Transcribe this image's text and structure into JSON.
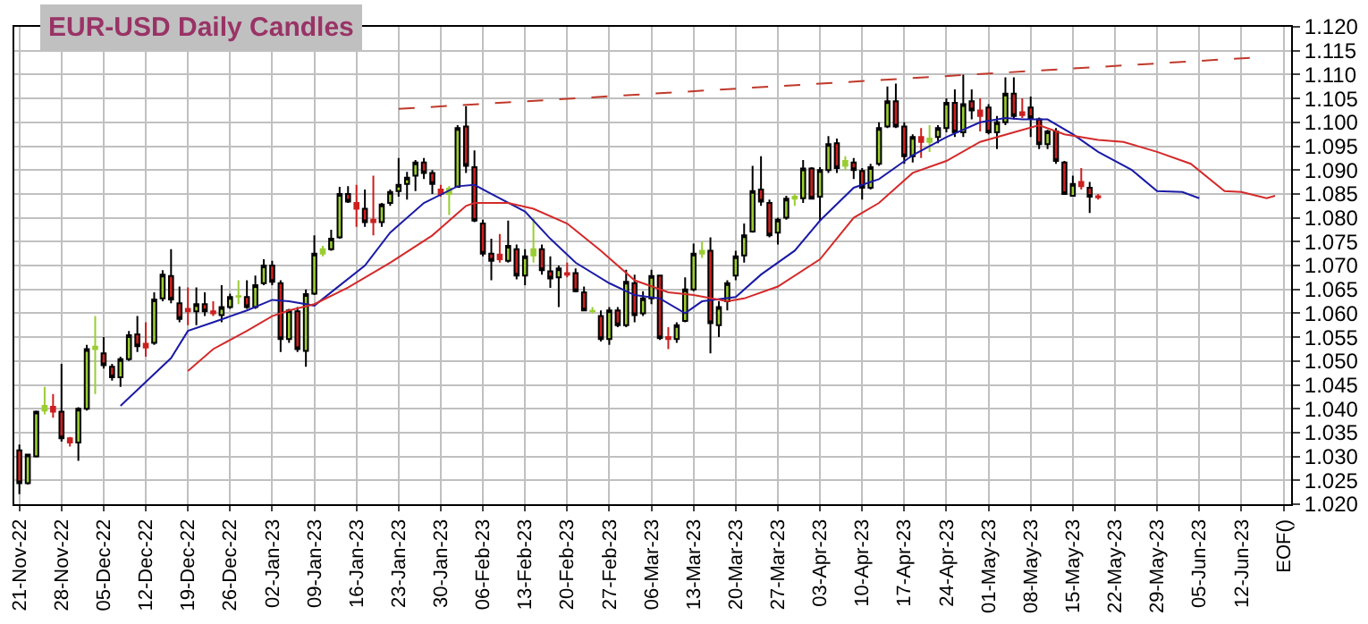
{
  "chart_data": {
    "type": "candlestick",
    "title": "EUR-USD Daily Candles",
    "colors": [
      "#cc1f1f",
      "#9acd32",
      "#9acd32",
      "#9acd32",
      "#cc1f1f",
      "#cc1f1f",
      "#cc1f1f",
      "#9acd32",
      "#9acd32",
      "#9acd32",
      "#cc1f1f",
      "#cc1f1f",
      "#9acd32",
      "#9acd32",
      "#cc1f1f",
      "#cc1f1f",
      "#9acd32",
      "#9acd32",
      "#cc1f1f",
      "#cc1f1f",
      "#cc1f1f",
      "#9acd32",
      "#cc1f1f",
      "#cc1f1f",
      "#9acd32",
      "#9acd32",
      "#9acd32",
      "#cc1f1f",
      "#9acd32",
      "#9acd32",
      "#cc1f1f",
      "#cc1f1f",
      "#9acd32",
      "#cc1f1f",
      "#9acd32",
      "#9acd32",
      "#9acd32",
      "#9acd32",
      "#9acd32",
      "#cc1f1f",
      "#cc1f1f",
      "#cc1f1f",
      "#cc1f1f",
      "#9acd32",
      "#9acd32",
      "#9acd32",
      "#9acd32",
      "#9acd32",
      "#cc1f1f",
      "#cc1f1f",
      "#cc1f1f",
      "#9acd32",
      "#9acd32",
      "#cc1f1f",
      "#cc1f1f",
      "#cc1f1f",
      "#cc1f1f",
      "#cc1f1f",
      "#9acd32",
      "#cc1f1f",
      "#9acd32",
      "#9acd32",
      "#cc1f1f",
      "#cc1f1f",
      "#9acd32",
      "#cc1f1f",
      "#cc1f1f",
      "#cc1f1f",
      "#9acd32",
      "#cc1f1f",
      "#9acd32",
      "#cc1f1f",
      "#9acd32",
      "#cc1f1f",
      "#9acd32",
      "#9acd32",
      "#cc1f1f",
      "#cc1f1f",
      "#9acd32",
      "#9acd32",
      "#9acd32",
      "#9acd32",
      "#cc1f1f",
      "#9acd32",
      "#9acd32",
      "#9acd32",
      "#9acd32",
      "#9acd32",
      "#cc1f1f",
      "#cc1f1f",
      "#9acd32",
      "#9acd32",
      "#9acd32",
      "#9acd32",
      "#cc1f1f",
      "#9acd32",
      "#9acd32",
      "#cc1f1f",
      "#9acd32",
      "#cc1f1f",
      "#cc1f1f",
      "#9acd32",
      "#9acd32",
      "#9acd32",
      "#cc1f1f",
      "#cc1f1f",
      "#9acd32",
      "#cc1f1f",
      "#9acd32",
      "#9acd32",
      "#9acd32",
      "#cc1f1f",
      "#9acd32",
      "#cc1f1f",
      "#cc1f1f",
      "#cc1f1f",
      "#9acd32",
      "#9acd32",
      "#cc1f1f",
      "#cc1f1f",
      "#cc1f1f",
      "#cc1f1f",
      "#9acd32",
      "#cc1f1f",
      "#cc1f1f",
      "#9acd32",
      "#cc1f1f",
      "#cc1f1f",
      "#cc1f1f",
      null,
      null,
      null,
      null,
      null,
      null,
      null,
      null,
      null,
      null,
      null,
      null,
      null,
      null,
      null,
      null,
      null,
      null,
      null,
      null,
      null,
      null
    ],
    "categories": [
      "21-Nov-22",
      null,
      null,
      null,
      null,
      "28-Nov-22",
      null,
      null,
      null,
      null,
      "05-Dec-22",
      null,
      null,
      null,
      null,
      "12-Dec-22",
      null,
      null,
      null,
      null,
      "19-Dec-22",
      null,
      null,
      null,
      null,
      "26-Dec-22",
      null,
      null,
      null,
      null,
      "02-Jan-23",
      null,
      null,
      null,
      null,
      "09-Jan-23",
      null,
      null,
      null,
      null,
      "16-Jan-23",
      null,
      null,
      null,
      null,
      "23-Jan-23",
      null,
      null,
      null,
      null,
      "30-Jan-23",
      null,
      null,
      null,
      null,
      "06-Feb-23",
      null,
      null,
      null,
      null,
      "13-Feb-23",
      null,
      null,
      null,
      null,
      "20-Feb-23",
      null,
      null,
      null,
      null,
      "27-Feb-23",
      null,
      null,
      null,
      null,
      "06-Mar-23",
      null,
      null,
      null,
      null,
      "13-Mar-23",
      null,
      null,
      null,
      null,
      "20-Mar-23",
      null,
      null,
      null,
      null,
      "27-Mar-23",
      null,
      null,
      null,
      null,
      "03-Apr-23",
      null,
      null,
      null,
      null,
      "10-Apr-23",
      null,
      null,
      null,
      null,
      "17-Apr-23",
      null,
      null,
      null,
      null,
      "24-Apr-23",
      null,
      null,
      null,
      null,
      "01-May-23",
      null,
      null,
      null,
      null,
      "08-May-23",
      null,
      null,
      null,
      null,
      "15-May-23",
      null,
      null,
      null,
      null,
      "22-May-23",
      null,
      null,
      null,
      null,
      "29-May-23",
      null,
      null,
      null,
      null,
      "05-Jun-23",
      null,
      null,
      null,
      null,
      "12-Jun-23",
      null,
      null,
      null,
      null,
      "EOF()"
    ],
    "ohlc": [
      [
        1.0313,
        1.0325,
        1.0221,
        1.0244
      ],
      [
        1.0244,
        1.0306,
        1.0241,
        1.0304
      ],
      [
        1.03,
        1.0396,
        1.0298,
        1.0394
      ],
      [
        1.0396,
        1.0446,
        1.0388,
        1.0406
      ],
      [
        1.0404,
        1.0431,
        1.0381,
        1.0394
      ],
      [
        1.0394,
        1.0494,
        1.0331,
        1.0338
      ],
      [
        1.0338,
        1.0341,
        1.0321,
        1.0329
      ],
      [
        1.0329,
        1.0403,
        1.0291,
        1.04
      ],
      [
        1.04,
        1.0534,
        1.0396,
        1.0525
      ],
      [
        1.0525,
        1.0594,
        1.0431,
        1.053
      ],
      [
        1.0516,
        1.055,
        1.0484,
        1.0491
      ],
      [
        1.0488,
        1.0494,
        1.0459,
        1.0466
      ],
      [
        1.0466,
        1.0509,
        1.0446,
        1.0504
      ],
      [
        1.0504,
        1.0563,
        1.05,
        1.0554
      ],
      [
        1.0556,
        1.0594,
        1.0519,
        1.0531
      ],
      [
        1.0536,
        1.0581,
        1.0509,
        1.0528
      ],
      [
        1.0538,
        1.0644,
        1.0534,
        1.0629
      ],
      [
        1.0631,
        1.069,
        1.0625,
        1.0681
      ],
      [
        1.0678,
        1.0734,
        1.0621,
        1.0629
      ],
      [
        1.0621,
        1.0656,
        1.0581,
        1.0588
      ],
      [
        1.0609,
        1.0654,
        1.0575,
        1.0604
      ],
      [
        1.0604,
        1.0654,
        1.0575,
        1.0619
      ],
      [
        1.0619,
        1.0644,
        1.0594,
        1.0604
      ],
      [
        1.0604,
        1.0625,
        1.0594,
        1.06
      ],
      [
        1.0596,
        1.0659,
        1.0581,
        1.0613
      ],
      [
        1.0613,
        1.0641,
        1.0609,
        1.0634
      ],
      [
        1.0635,
        1.0669,
        1.0619,
        1.0636
      ],
      [
        1.0634,
        1.0669,
        1.0609,
        1.0613
      ],
      [
        1.0613,
        1.0679,
        1.0609,
        1.0659
      ],
      [
        1.0663,
        1.0713,
        1.0659,
        1.07
      ],
      [
        1.07,
        1.071,
        1.0659,
        1.0666
      ],
      [
        1.0663,
        1.0669,
        1.0519,
        1.0546
      ],
      [
        1.0546,
        1.0609,
        1.0538,
        1.0606
      ],
      [
        1.0604,
        1.0613,
        1.0519,
        1.0525
      ],
      [
        1.0521,
        1.065,
        1.0488,
        1.064
      ],
      [
        1.0641,
        1.0763,
        1.0638,
        1.0725
      ],
      [
        1.0725,
        1.0741,
        1.0719,
        1.0734
      ],
      [
        1.0734,
        1.0775,
        1.0731,
        1.0756
      ],
      [
        1.0759,
        1.0865,
        1.0756,
        1.085
      ],
      [
        1.085,
        1.0866,
        1.0831,
        1.0834
      ],
      [
        1.0831,
        1.0869,
        1.0781,
        1.0819
      ],
      [
        1.0819,
        1.0859,
        1.0781,
        1.0791
      ],
      [
        1.0796,
        1.0888,
        1.0763,
        1.0791
      ],
      [
        1.0791,
        1.0831,
        1.0781,
        1.0828
      ],
      [
        1.0831,
        1.0859,
        1.0825,
        1.0854
      ],
      [
        1.0856,
        1.0925,
        1.0844,
        1.0869
      ],
      [
        1.0871,
        1.0896,
        1.0838,
        1.0884
      ],
      [
        1.0888,
        1.0921,
        1.0856,
        1.0916
      ],
      [
        1.0916,
        1.0925,
        1.0881,
        1.0894
      ],
      [
        1.0894,
        1.09,
        1.085,
        1.0871
      ],
      [
        1.0859,
        1.0869,
        1.0844,
        1.085
      ],
      [
        1.085,
        1.0866,
        1.0806,
        1.0861
      ],
      [
        1.0865,
        1.0994,
        1.0863,
        1.0988
      ],
      [
        1.0991,
        1.1034,
        1.0894,
        1.0909
      ],
      [
        1.0906,
        1.0941,
        1.0791,
        1.0794
      ],
      [
        1.0788,
        1.0796,
        1.0719,
        1.0725
      ],
      [
        1.0725,
        1.0756,
        1.0669,
        1.071
      ],
      [
        1.0723,
        1.0766,
        1.0706,
        1.0713
      ],
      [
        1.071,
        1.0794,
        1.0706,
        1.0741
      ],
      [
        1.0734,
        1.0744,
        1.0671,
        1.0679
      ],
      [
        1.0679,
        1.0734,
        1.0659,
        1.0719
      ],
      [
        1.0721,
        1.08,
        1.0706,
        1.0734
      ],
      [
        1.0734,
        1.0744,
        1.0681,
        1.069
      ],
      [
        1.0688,
        1.0719,
        1.0653,
        1.0673
      ],
      [
        1.0675,
        1.07,
        1.0613,
        1.0694
      ],
      [
        1.0684,
        1.0706,
        1.0675,
        1.0681
      ],
      [
        1.0684,
        1.0694,
        1.0644,
        1.0646
      ],
      [
        1.0644,
        1.0656,
        1.0604,
        1.0606
      ],
      [
        1.0604,
        1.0613,
        1.06,
        1.0605
      ],
      [
        1.0594,
        1.0606,
        1.0541,
        1.0546
      ],
      [
        1.0546,
        1.0613,
        1.0534,
        1.0606
      ],
      [
        1.0606,
        1.0613,
        1.0571,
        1.0575
      ],
      [
        1.0575,
        1.0691,
        1.0571,
        1.0666
      ],
      [
        1.0663,
        1.0681,
        1.0581,
        1.0596
      ],
      [
        1.06,
        1.0646,
        1.0594,
        1.0631
      ],
      [
        1.0631,
        1.0691,
        1.0619,
        1.0678
      ],
      [
        1.0679,
        1.0681,
        1.0544,
        1.0548
      ],
      [
        1.055,
        1.0571,
        1.0525,
        1.0546
      ],
      [
        1.0546,
        1.0581,
        1.0538,
        1.0575
      ],
      [
        1.0584,
        1.0675,
        1.0581,
        1.065
      ],
      [
        1.065,
        1.0746,
        1.0646,
        1.0725
      ],
      [
        1.0725,
        1.075,
        1.0716,
        1.0731
      ],
      [
        1.0731,
        1.0759,
        1.0516,
        1.0579
      ],
      [
        1.0575,
        1.0625,
        1.055,
        1.0613
      ],
      [
        1.0625,
        1.0669,
        1.0606,
        1.0663
      ],
      [
        1.0679,
        1.0731,
        1.0669,
        1.0719
      ],
      [
        1.0721,
        1.0788,
        1.0706,
        1.0763
      ],
      [
        1.0771,
        1.0909,
        1.0769,
        1.0856
      ],
      [
        1.0859,
        1.0929,
        1.0825,
        1.0834
      ],
      [
        1.0831,
        1.0838,
        1.0759,
        1.0763
      ],
      [
        1.0769,
        1.08,
        1.0744,
        1.0796
      ],
      [
        1.08,
        1.0846,
        1.0796,
        1.084
      ],
      [
        1.084,
        1.085,
        1.0825,
        1.0844
      ],
      [
        1.0841,
        1.0921,
        1.0831,
        1.0903
      ],
      [
        1.0903,
        1.0906,
        1.0838,
        1.084
      ],
      [
        1.0844,
        1.0906,
        1.0794,
        1.09
      ],
      [
        1.09,
        1.0971,
        1.0894,
        1.0954
      ],
      [
        1.0956,
        1.0966,
        1.0894,
        1.0904
      ],
      [
        1.0909,
        1.0929,
        1.09,
        1.0919
      ],
      [
        1.0916,
        1.0925,
        1.0881,
        1.09
      ],
      [
        1.0898,
        1.0904,
        1.0838,
        1.0863
      ],
      [
        1.0863,
        1.0913,
        1.0859,
        1.0906
      ],
      [
        1.0913,
        1.1,
        1.0909,
        1.0988
      ],
      [
        1.0991,
        1.1075,
        1.0988,
        1.1044
      ],
      [
        1.1044,
        1.1081,
        1.0988,
        1.0991
      ],
      [
        1.0991,
        1.1,
        1.0913,
        1.0929
      ],
      [
        1.0929,
        1.0975,
        1.0916,
        1.0969
      ],
      [
        1.0969,
        1.0988,
        1.0925,
        1.0959
      ],
      [
        1.0959,
        1.0994,
        1.0938,
        1.0966
      ],
      [
        1.0969,
        1.0994,
        1.0956,
        1.0988
      ],
      [
        1.0988,
        1.105,
        1.0979,
        1.1041
      ],
      [
        1.1041,
        1.1069,
        1.0969,
        1.0979
      ],
      [
        1.0979,
        1.11,
        1.0969,
        1.1038
      ],
      [
        1.1044,
        1.1069,
        1.1006,
        1.1025
      ],
      [
        1.1025,
        1.105,
        1.0981,
        1.1013
      ],
      [
        1.1031,
        1.1038,
        1.0975,
        1.0979
      ],
      [
        1.0979,
        1.1013,
        1.0944,
        1.1
      ],
      [
        1.1,
        1.1094,
        1.0994,
        1.106
      ],
      [
        1.106,
        1.1094,
        1.1006,
        1.1013
      ],
      [
        1.1021,
        1.105,
        1.1009,
        1.1015
      ],
      [
        1.1031,
        1.1054,
        1.0969,
        1.1009
      ],
      [
        1.1006,
        1.101,
        1.0944,
        1.0954
      ],
      [
        1.0954,
        1.0984,
        1.0944,
        1.0981
      ],
      [
        1.0981,
        1.0988,
        1.0913,
        1.0919
      ],
      [
        1.0916,
        1.0919,
        1.0848,
        1.085
      ],
      [
        1.0846,
        1.0888,
        1.0844,
        1.0871
      ],
      [
        1.0875,
        1.0904,
        1.0859,
        1.0866
      ],
      [
        1.0863,
        1.0875,
        1.081,
        1.0844
      ],
      [
        1.0845,
        1.085,
        1.0838,
        1.0843
      ],
      null,
      null,
      null,
      null,
      null,
      null,
      null,
      null,
      null,
      null,
      null,
      null,
      null,
      null,
      null,
      null,
      null,
      null,
      null,
      null,
      null,
      null
    ],
    "series": [
      {
        "type": "line",
        "color": "#1a1aa6",
        "values": [
          null,
          null,
          null,
          null,
          null,
          null,
          null,
          null,
          null,
          null,
          null,
          null,
          1.0406,
          null,
          null,
          1.0456,
          null,
          null,
          1.0506,
          null,
          1.0563,
          null,
          null,
          1.0581,
          null,
          null,
          null,
          1.0606,
          null,
          null,
          1.0628,
          null,
          1.0625,
          null,
          null,
          1.0616,
          null,
          1.0644,
          null,
          null,
          null,
          1.07,
          null,
          null,
          1.0769,
          null,
          null,
          null,
          1.0831,
          null,
          null,
          null,
          1.0866,
          null,
          1.0869,
          null,
          1.085,
          null,
          null,
          null,
          1.0813,
          null,
          null,
          1.0756,
          null,
          null,
          1.0706,
          null,
          null,
          null,
          1.0663,
          null,
          null,
          1.0638,
          null,
          null,
          1.0631,
          null,
          null,
          1.06,
          null,
          1.0625,
          null,
          null,
          null,
          1.0634,
          null,
          null,
          1.0681,
          null,
          null,
          null,
          1.0731,
          null,
          null,
          1.0794,
          null,
          null,
          null,
          1.0863,
          1.0869,
          null,
          1.0881,
          null,
          null,
          null,
          1.0931,
          null,
          null,
          null,
          1.0969,
          null,
          null,
          null,
          1.1,
          null,
          null,
          1.1009,
          null,
          1.1006,
          null,
          null,
          1.1006,
          null,
          null,
          1.0975,
          null,
          null,
          1.0938,
          null,
          null,
          null,
          1.09,
          null,
          null,
          1.0856,
          null,
          null,
          1.0854,
          null,
          1.0841,
          null,
          null,
          null,
          null,
          null,
          null,
          null,
          null,
          null,
          null
        ]
      },
      {
        "type": "line",
        "color": "#d42a2a",
        "values": [
          null,
          null,
          null,
          null,
          null,
          null,
          null,
          null,
          null,
          null,
          null,
          null,
          null,
          null,
          null,
          null,
          null,
          null,
          null,
          null,
          1.0479,
          null,
          null,
          1.0525,
          null,
          null,
          null,
          1.0563,
          null,
          null,
          1.0594,
          null,
          1.0606,
          null,
          null,
          1.0619,
          null,
          null,
          null,
          1.0654,
          null,
          null,
          null,
          null,
          1.0706,
          null,
          null,
          null,
          null,
          1.0763,
          null,
          null,
          null,
          1.0825,
          1.0831,
          null,
          null,
          null,
          1.0831,
          null,
          null,
          1.0819,
          null,
          null,
          null,
          1.0788,
          null,
          null,
          null,
          1.0731,
          null,
          null,
          null,
          1.0669,
          null,
          null,
          null,
          1.0644,
          null,
          null,
          1.0638,
          null,
          null,
          null,
          1.0625,
          null,
          1.0631,
          null,
          null,
          null,
          1.0656,
          null,
          null,
          null,
          null,
          1.0713,
          null,
          null,
          null,
          1.08,
          null,
          null,
          1.0831,
          null,
          null,
          null,
          1.0894,
          null,
          null,
          null,
          1.0919,
          null,
          null,
          null,
          1.0959,
          null,
          null,
          null,
          1.0979,
          null,
          null,
          1.0994,
          null,
          null,
          1.0975,
          null,
          null,
          null,
          1.0963,
          null,
          null,
          1.0959,
          null,
          null,
          null,
          1.0938,
          null,
          null,
          null,
          1.0913,
          null,
          null,
          null,
          1.0856,
          null,
          1.0854,
          null,
          null,
          1.0841,
          1.0846,
          null
        ]
      },
      {
        "type": "line",
        "color": "#c0392b",
        "line_style": "dashed",
        "values": [
          null,
          null,
          null,
          null,
          null,
          null,
          null,
          null,
          null,
          null,
          null,
          null,
          null,
          null,
          null,
          null,
          null,
          null,
          null,
          null,
          null,
          null,
          null,
          null,
          null,
          null,
          null,
          null,
          null,
          null,
          null,
          null,
          null,
          null,
          null,
          null,
          null,
          null,
          null,
          null,
          null,
          null,
          null,
          null,
          null,
          1.1028,
          null,
          null,
          null,
          null,
          null,
          null,
          null,
          null,
          null,
          null,
          null,
          null,
          null,
          null,
          null,
          null,
          null,
          null,
          null,
          null,
          null,
          null,
          null,
          null,
          null,
          null,
          null,
          null,
          null,
          null,
          null,
          null,
          null,
          null,
          null,
          null,
          null,
          null,
          null,
          null,
          null,
          null,
          null,
          null,
          null,
          null,
          null,
          null,
          null,
          null,
          null,
          null,
          null,
          null,
          null,
          null,
          null,
          null,
          null,
          null,
          null,
          null,
          null,
          null,
          null,
          null,
          null,
          null,
          null,
          null,
          null,
          null,
          null,
          null,
          null,
          null,
          null,
          null,
          null,
          null,
          null,
          null,
          null,
          null,
          null,
          null,
          null,
          null,
          null,
          null,
          null,
          null,
          null,
          null,
          null,
          null,
          null,
          null,
          null,
          null,
          1.1135,
          null,
          null,
          null,
          null
        ]
      }
    ],
    "ylim": [
      1.02,
      1.12
    ],
    "yticks": [
      {
        "value": 1.02,
        "label": "1.020"
      },
      1.025,
      {
        "value": 1.03,
        "label": "1.030"
      },
      1.035,
      {
        "value": 1.04,
        "label": "1.040"
      },
      1.045,
      {
        "value": 1.05,
        "label": "1.050"
      },
      1.055,
      {
        "value": 1.06,
        "label": "1.060"
      },
      1.065,
      {
        "value": 1.07,
        "label": "1.070"
      },
      1.075,
      {
        "value": 1.08,
        "label": "1.080"
      },
      1.085,
      {
        "value": 1.09,
        "label": "1.090"
      },
      1.095,
      {
        "value": 1.1,
        "label": "1.100"
      },
      1.105,
      {
        "value": 1.11,
        "label": "1.110"
      },
      1.115,
      {
        "value": 1.12,
        "label": "1.120"
      }
    ],
    "grid": true,
    "marker": "none"
  }
}
